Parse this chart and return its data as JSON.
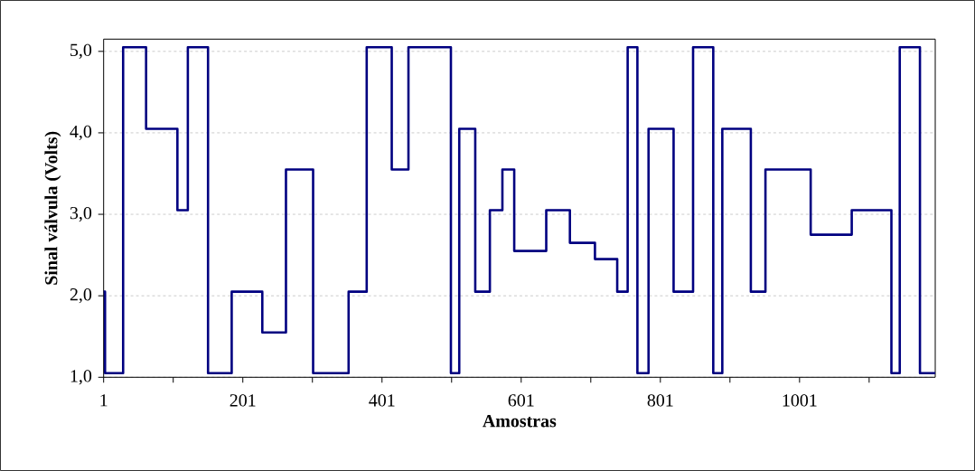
{
  "chart_data": {
    "type": "step",
    "xlabel": "Amostras",
    "ylabel": "Sinal válvula (Volts)",
    "x": [
      1,
      3,
      29,
      62,
      107,
      122,
      151,
      185,
      229,
      263,
      302,
      353,
      379,
      415,
      439,
      500,
      512,
      535,
      556,
      574,
      591,
      637,
      671,
      707,
      739,
      754,
      768,
      784,
      820,
      848,
      877,
      890,
      931,
      952,
      1017,
      1076,
      1133,
      1145,
      1174,
      1196
    ],
    "series": [
      {
        "color": "#000080",
        "values": [
          2.05,
          1.05,
          5.05,
          4.05,
          3.05,
          5.05,
          1.05,
          2.05,
          1.55,
          3.55,
          1.05,
          2.05,
          5.05,
          3.55,
          5.05,
          1.05,
          4.05,
          2.05,
          3.05,
          3.55,
          2.55,
          3.05,
          2.65,
          2.45,
          2.05,
          5.05,
          1.05,
          4.05,
          2.05,
          5.05,
          1.05,
          4.05,
          2.05,
          3.55,
          2.75,
          3.05,
          1.05,
          5.05,
          1.05,
          1.05
        ]
      }
    ],
    "xlim": [
      1,
      1196
    ],
    "xticks": [
      1,
      {
        "value": 101,
        "label": null
      },
      201,
      {
        "value": 301,
        "label": null
      },
      401,
      {
        "value": 501,
        "label": null
      },
      601,
      {
        "value": 701,
        "label": null
      },
      801,
      {
        "value": 901,
        "label": null
      },
      1001,
      {
        "value": 1101,
        "label": null
      }
    ],
    "ylim": [
      1,
      5.15
    ],
    "yticks": [
      {
        "value": 1,
        "label": "1,0"
      },
      {
        "value": 2,
        "label": "2,0"
      },
      {
        "value": 3,
        "label": "3,0"
      },
      {
        "value": 4,
        "label": "4,0"
      },
      {
        "value": 5,
        "label": "5,0"
      }
    ],
    "grid": "y",
    "marker": "none",
    "line_style": "solid"
  }
}
